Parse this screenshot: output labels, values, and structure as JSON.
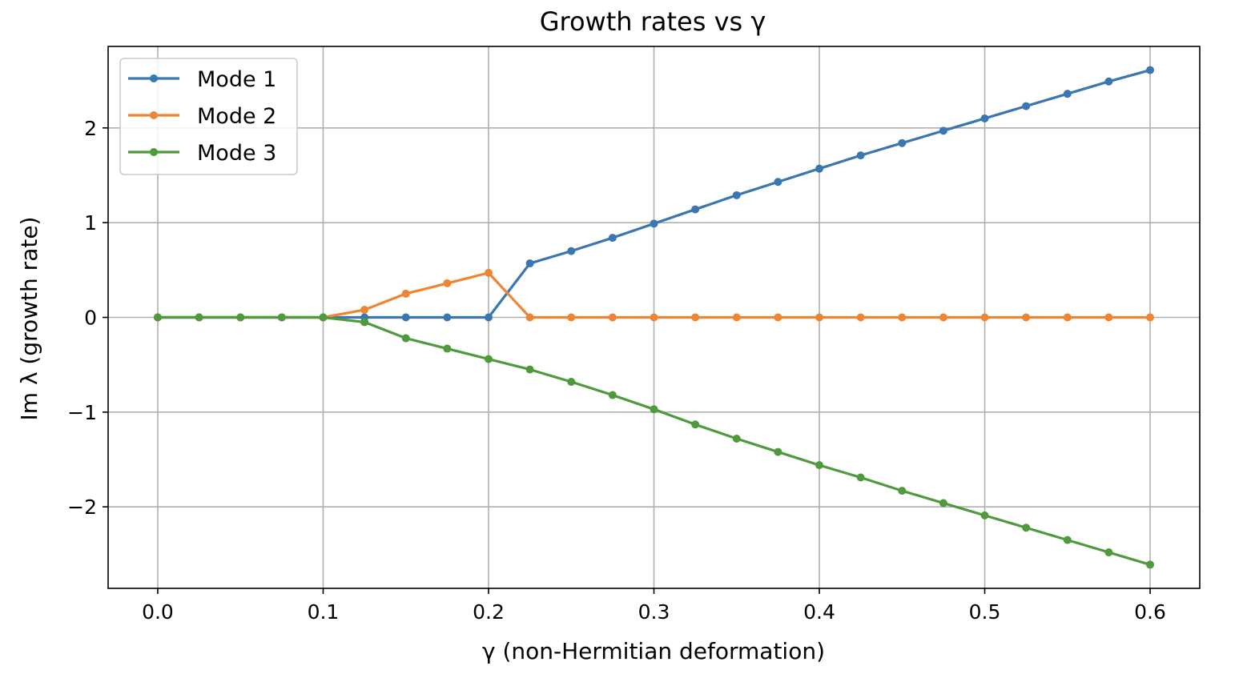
{
  "chart_data": {
    "type": "line",
    "title": "Growth rates vs γ",
    "xlabel": "γ (non-Hermitian deformation)",
    "ylabel": "Im λ (growth rate)",
    "xlim": [
      -0.03,
      0.63
    ],
    "ylim": [
      -2.86,
      2.86
    ],
    "xticks": [
      0.0,
      0.1,
      0.2,
      0.3,
      0.4,
      0.5,
      0.6
    ],
    "xtick_labels": [
      "0.0",
      "0.1",
      "0.2",
      "0.3",
      "0.4",
      "0.5",
      "0.6"
    ],
    "yticks": [
      -2,
      -1,
      0,
      1,
      2
    ],
    "ytick_labels": [
      "−2",
      "−1",
      "0",
      "1",
      "2"
    ],
    "grid": true,
    "legend_position": "top-left",
    "x": [
      0.0,
      0.025,
      0.05,
      0.075,
      0.1,
      0.125,
      0.15,
      0.175,
      0.2,
      0.225,
      0.25,
      0.275,
      0.3,
      0.325,
      0.35,
      0.375,
      0.4,
      0.425,
      0.45,
      0.475,
      0.5,
      0.525,
      0.55,
      0.575,
      0.6
    ],
    "series": [
      {
        "name": "Mode 1",
        "color": "#3a77b0",
        "values": [
          0,
          0,
          0,
          0,
          0,
          0,
          0,
          0,
          0,
          0.57,
          0.7,
          0.84,
          0.99,
          1.14,
          1.29,
          1.43,
          1.57,
          1.71,
          1.84,
          1.97,
          2.1,
          2.23,
          2.36,
          2.49,
          2.61
        ]
      },
      {
        "name": "Mode 2",
        "color": "#ef8532",
        "values": [
          0,
          0,
          0,
          0,
          0,
          0.08,
          0.25,
          0.36,
          0.47,
          0,
          0,
          0,
          0,
          0,
          0,
          0,
          0,
          0,
          0,
          0,
          0,
          0,
          0,
          0,
          0
        ]
      },
      {
        "name": "Mode 3",
        "color": "#4f9a3d",
        "values": [
          0,
          0,
          0,
          0,
          0,
          -0.05,
          -0.22,
          -0.33,
          -0.44,
          -0.55,
          -0.68,
          -0.82,
          -0.97,
          -1.13,
          -1.28,
          -1.42,
          -1.56,
          -1.69,
          -1.83,
          -1.96,
          -2.09,
          -2.22,
          -2.35,
          -2.48,
          -2.61
        ]
      }
    ]
  }
}
